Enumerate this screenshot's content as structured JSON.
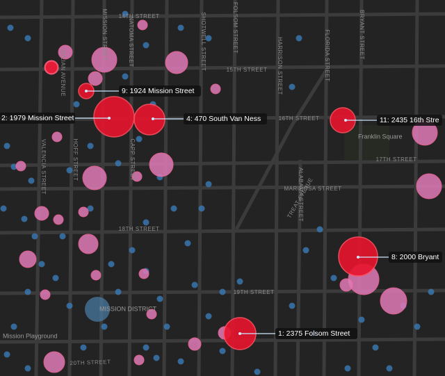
{
  "street_labels": [
    "14TH STREET",
    "15TH STREET",
    "16TH STREET",
    "17TH STREET",
    "MARIPOSA STREET",
    "18TH STREET",
    "19TH STREET",
    "20TH STREET",
    "MISSION STREET",
    "SHOTWELL STREET",
    "FOLSOM STREET",
    "HARRISON STREET",
    "TREAT AVENUE",
    "ALABAMA STREET",
    "FLORIDA STREET",
    "BRYANT STREET",
    "CAPP STREET",
    "HOFF STREET",
    "VALENCIA STREET",
    "JULIAN AVENUE",
    "NATOMA STREET"
  ],
  "place_labels": [
    "Franklin Square",
    "MISSION DISTRICT",
    "Mission Playground"
  ],
  "callouts": [
    "9: 1924 Mission Street",
    "2: 1979 Mission Street",
    "4: 470 South Van Ness",
    "11: 2435 16th Stre",
    "8: 2000 Bryant",
    "1: 2375 Folsom Street"
  ]
}
